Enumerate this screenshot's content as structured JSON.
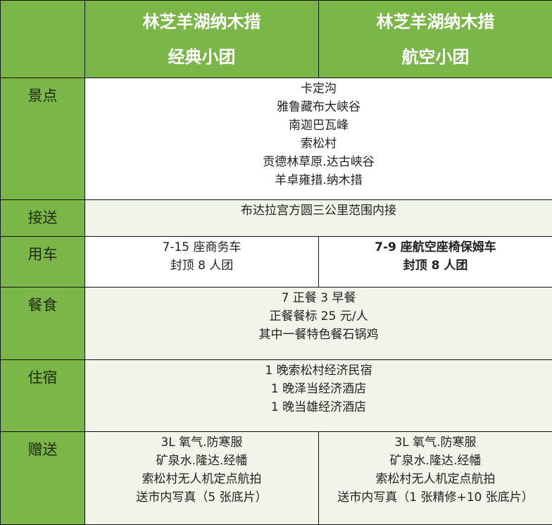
{
  "header": {
    "columns": [
      {
        "line1": "林芝羊湖纳木措",
        "line2": "经典小团"
      },
      {
        "line1": "林芝羊湖纳木措",
        "line2": "航空小团"
      }
    ]
  },
  "rows": {
    "scenic": {
      "label": "景点",
      "items": [
        "卡定沟",
        "雅鲁藏布大峡谷",
        "南迦巴瓦峰",
        "索松村",
        "贡德林草原.达古峡谷",
        "羊卓雍措.纳木措"
      ]
    },
    "pickup": {
      "label": "接送",
      "items": [
        "布达拉宫方圆三公里范围内接"
      ]
    },
    "vehicle": {
      "label": "用车",
      "classic": [
        "7-15 座商务车",
        "封顶 8 人团"
      ],
      "air": [
        "7-9 座航空座椅保姆车",
        "封顶 8 人团"
      ]
    },
    "meals": {
      "label": "餐食",
      "items": [
        "7 正餐 3 早餐",
        "正餐餐标 25 元/人",
        "其中一餐特色餐石锅鸡"
      ]
    },
    "lodging": {
      "label": "住宿",
      "items": [
        "1 晚索松村经济民宿",
        "1 晚泽当经济酒店",
        "1 晚当雄经济酒店"
      ]
    },
    "gifts": {
      "label": "赠送",
      "classic": [
        "3L 氧气.防寒服",
        "矿泉水.隆达.经幡",
        "索松村无人机定点航拍",
        "送市内写真（5 张底片）"
      ],
      "air": [
        "3L 氧气.防寒服",
        "矿泉水.隆达.经幡",
        "索松村无人机定点航拍",
        "送市内写真（1 张精修+10 张底片）"
      ]
    }
  },
  "colors": {
    "header_green": "#7ab648",
    "row_tint": "#f0f5ea"
  }
}
